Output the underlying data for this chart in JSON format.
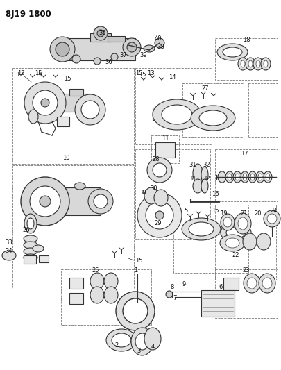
{
  "title": "8J19 1800",
  "bg_color": "#ffffff",
  "line_color": "#333333",
  "text_color": "#111111",
  "title_fontsize": 8.5,
  "label_fontsize": 6.0,
  "figsize": [
    4.05,
    5.33
  ],
  "dpi": 100
}
